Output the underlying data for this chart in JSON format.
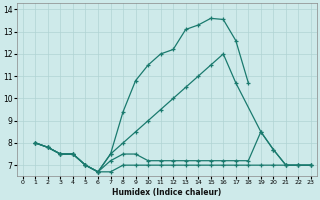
{
  "xlabel": "Humidex (Indice chaleur)",
  "xlim": [
    -0.5,
    23.5
  ],
  "ylim": [
    6.5,
    14.3
  ],
  "xticks": [
    0,
    1,
    2,
    3,
    4,
    5,
    6,
    7,
    8,
    9,
    10,
    11,
    12,
    13,
    14,
    15,
    16,
    17,
    18,
    19,
    20,
    21,
    22,
    23
  ],
  "yticks": [
    7,
    8,
    9,
    10,
    11,
    12,
    13,
    14
  ],
  "bg_color": "#ceeaea",
  "grid_color": "#b0d4d4",
  "line_color": "#1a7a6e",
  "lines": [
    {
      "x": [
        1,
        2,
        3,
        4,
        5,
        6,
        7,
        8,
        9,
        10,
        11,
        12,
        13,
        14,
        15,
        16,
        17,
        18
      ],
      "y": [
        8.0,
        7.8,
        7.5,
        7.5,
        7.0,
        6.7,
        7.5,
        9.4,
        10.8,
        11.5,
        12.0,
        12.2,
        13.1,
        13.3,
        13.6,
        13.55,
        12.6,
        10.7
      ]
    },
    {
      "x": [
        1,
        2,
        3,
        4,
        5,
        6,
        7,
        8,
        9,
        10,
        11,
        12,
        13,
        14,
        15,
        16,
        17,
        19,
        20,
        21,
        22,
        23
      ],
      "y": [
        8.0,
        7.8,
        7.5,
        7.5,
        7.0,
        6.7,
        7.5,
        8.0,
        8.5,
        9.0,
        9.5,
        10.0,
        10.5,
        11.0,
        11.5,
        12.0,
        10.7,
        8.5,
        7.7,
        7.0,
        7.0,
        7.0
      ]
    },
    {
      "x": [
        1,
        2,
        3,
        4,
        5,
        6,
        7,
        8,
        9,
        10,
        11,
        12,
        13,
        14,
        15,
        16,
        17,
        18,
        19,
        20,
        21,
        22,
        23
      ],
      "y": [
        8.0,
        7.8,
        7.5,
        7.5,
        7.0,
        6.7,
        7.2,
        7.5,
        7.5,
        7.2,
        7.2,
        7.2,
        7.2,
        7.2,
        7.2,
        7.2,
        7.2,
        7.2,
        8.5,
        7.7,
        7.0,
        7.0,
        7.0
      ]
    },
    {
      "x": [
        1,
        2,
        3,
        4,
        5,
        6,
        7,
        8,
        9,
        10,
        11,
        12,
        13,
        14,
        15,
        16,
        17,
        18,
        19,
        20,
        21,
        22,
        23
      ],
      "y": [
        8.0,
        7.8,
        7.5,
        7.5,
        7.0,
        6.7,
        6.7,
        7.0,
        7.0,
        7.0,
        7.0,
        7.0,
        7.0,
        7.0,
        7.0,
        7.0,
        7.0,
        7.0,
        7.0,
        7.0,
        7.0,
        7.0,
        7.0
      ]
    }
  ]
}
